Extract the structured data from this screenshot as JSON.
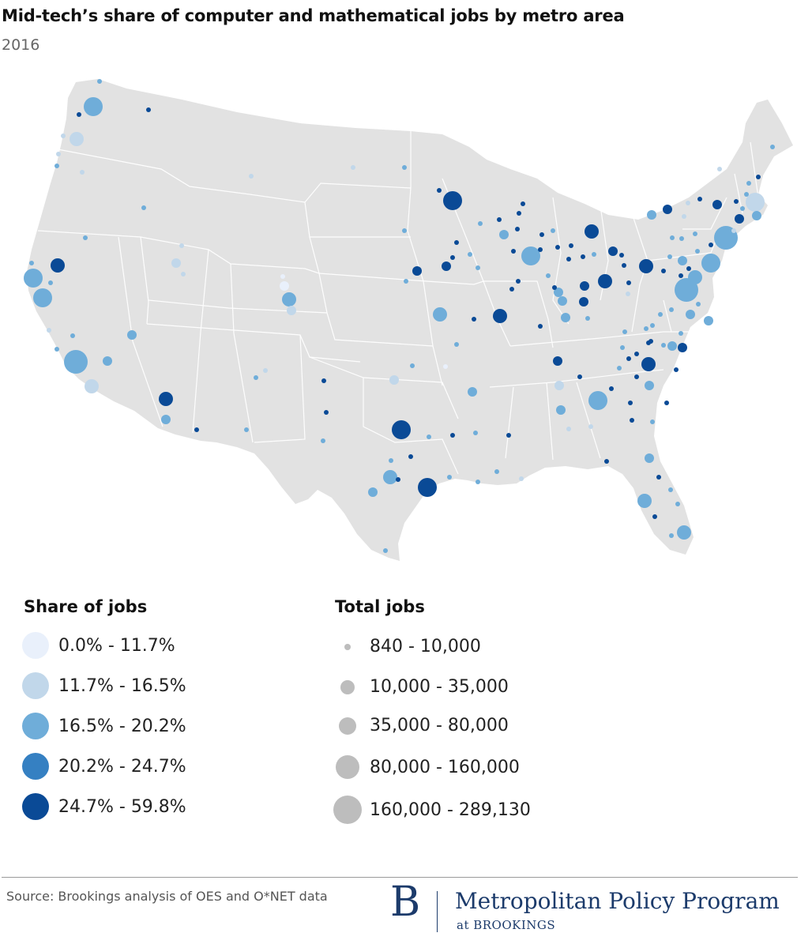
{
  "title": "Mid-tech’s share of computer and mathematical jobs by metro area",
  "subtitle": "2016",
  "colors": {
    "land": "#e2e2e2",
    "border": "#ffffff",
    "c0": "#e9f0fb",
    "c1": "#c1d7ea",
    "c2": "#6fadd9",
    "c3": "#3580c2",
    "c4": "#0a4a96",
    "size_grey": "#bdbdbd"
  },
  "legend": {
    "share": {
      "title": "Share of jobs",
      "items": [
        {
          "label": "0.0% - 11.7%",
          "color": "#e9f0fb"
        },
        {
          "label": "11.7% - 16.5%",
          "color": "#c1d7ea"
        },
        {
          "label": "16.5% - 20.2%",
          "color": "#6fadd9"
        },
        {
          "label": "20.2% - 24.7%",
          "color": "#3580c2"
        },
        {
          "label": "24.7% - 59.8%",
          "color": "#0a4a96"
        }
      ]
    },
    "total": {
      "title": "Total jobs",
      "items": [
        {
          "label": "840 - 10,000"
        },
        {
          "label": "10,000 - 35,000"
        },
        {
          "label": "35,000 - 80,000"
        },
        {
          "label": "80,000 - 160,000"
        },
        {
          "label": "160,000 - 289,130"
        }
      ]
    }
  },
  "source": "Source: Brookings analysis of OES and O*NET data",
  "brand": {
    "mark": "B",
    "name": "Metropolitan Policy Program",
    "sub": "at BROOKINGS"
  }
}
